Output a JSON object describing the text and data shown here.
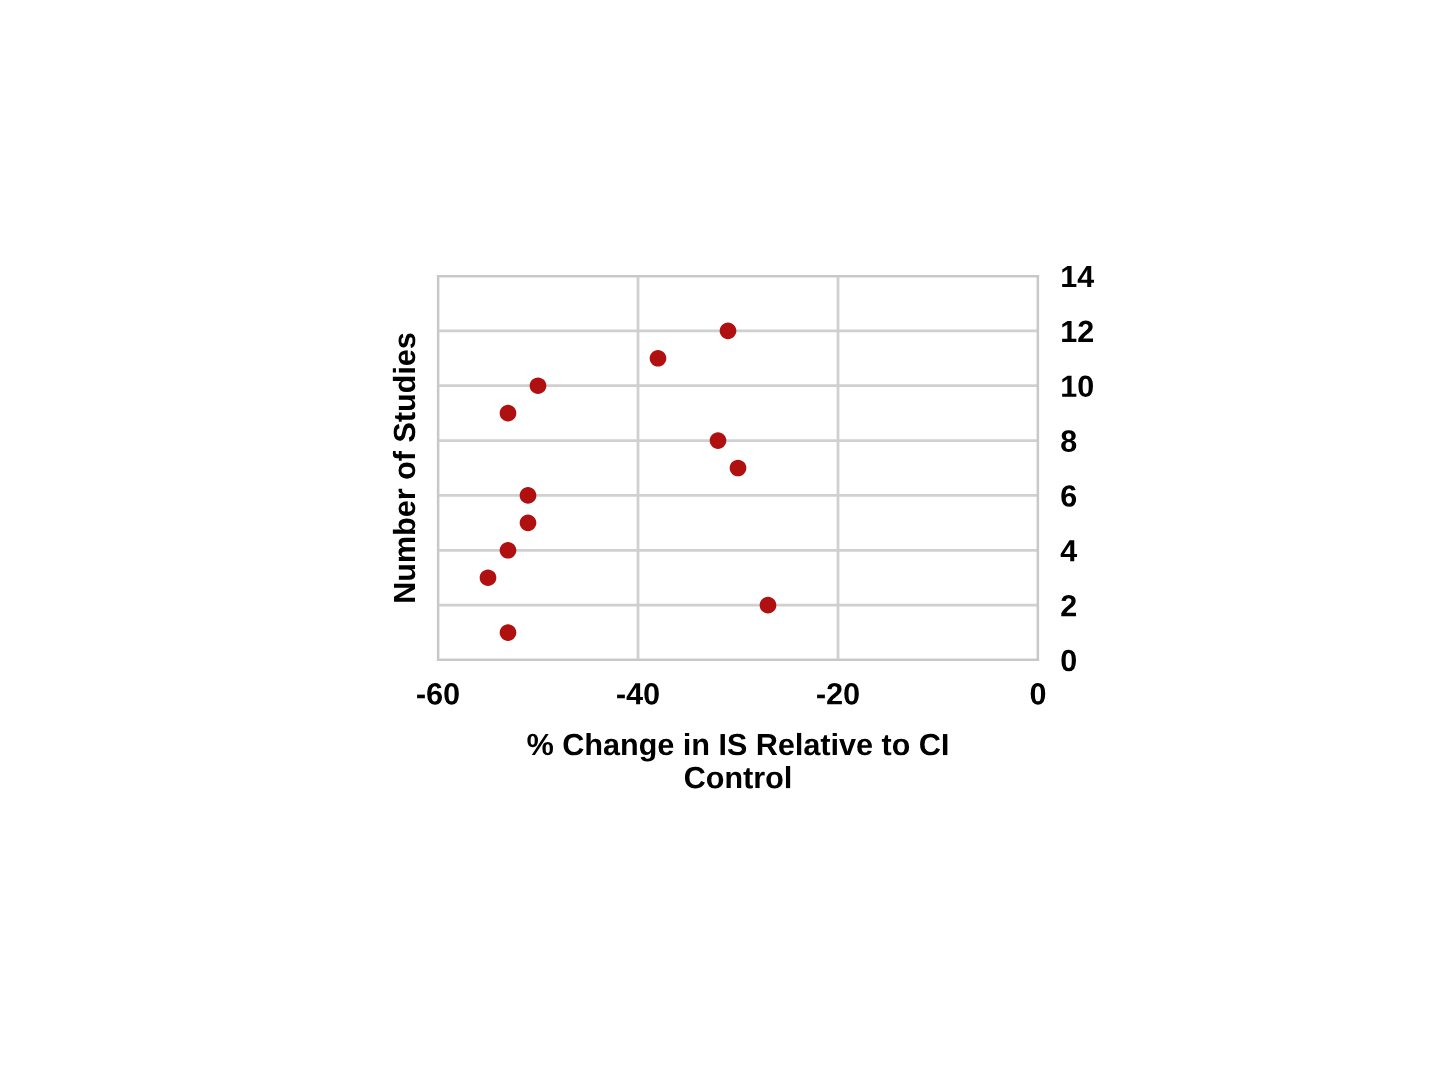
{
  "chart_data": {
    "type": "scatter",
    "xlabel": "% Change in IS Relative to CI\nControl",
    "ylabel": "Number of Studies",
    "x": [
      -53,
      -27,
      -55,
      -53,
      -51,
      -51,
      -30,
      -32,
      -53,
      -50,
      -38,
      -31
    ],
    "values": [
      1,
      2,
      3,
      4,
      5,
      6,
      7,
      8,
      9,
      10,
      11,
      12
    ],
    "color": "#b01010",
    "marker": "circle",
    "xlim": [
      -60,
      0
    ],
    "xticks": [
      -60,
      -40,
      -20,
      0
    ],
    "ylim": [
      0,
      14
    ],
    "yticks": [
      0,
      2,
      4,
      6,
      8,
      10,
      12,
      14
    ],
    "grid": true
  }
}
